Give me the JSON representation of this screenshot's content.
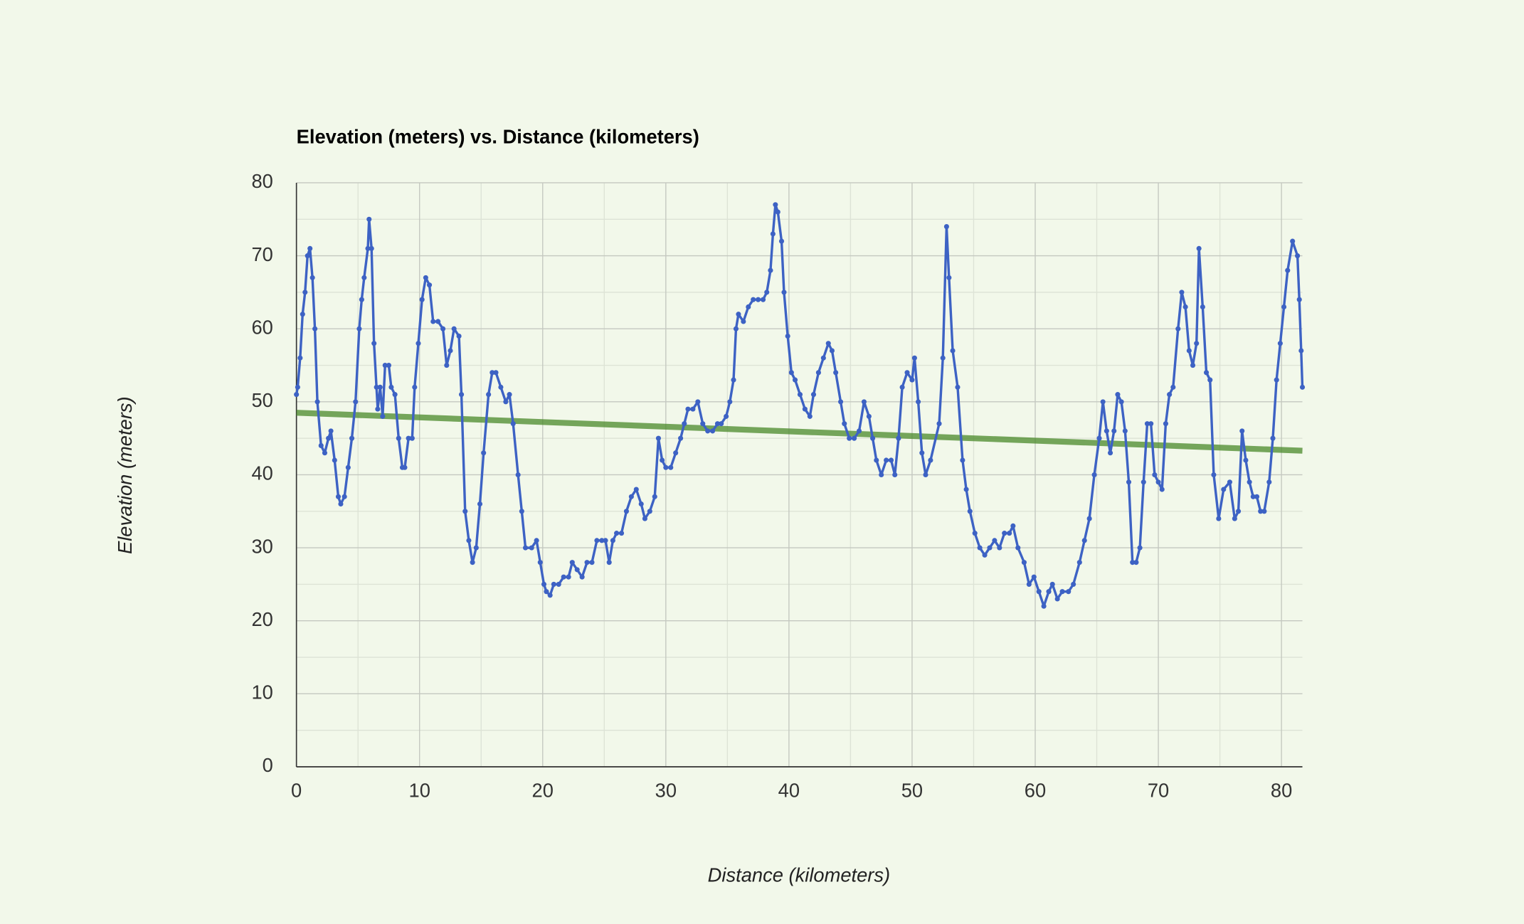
{
  "chart_data": {
    "type": "line",
    "title": "Elevation (meters) vs. Distance (kilometers)",
    "xlabel": "Distance (kilometers)",
    "ylabel": "Elevation (meters)",
    "xlim": [
      0,
      81.7
    ],
    "ylim": [
      0,
      80
    ],
    "xticks": [
      0,
      10,
      20,
      30,
      40,
      50,
      60,
      70,
      80
    ],
    "yticks": [
      0,
      10,
      20,
      30,
      40,
      50,
      60,
      70,
      80
    ],
    "xminorticks": [
      5,
      15,
      25,
      35,
      45,
      55,
      65,
      75
    ],
    "yminorticks": [
      5,
      15,
      25,
      35,
      45,
      55,
      65,
      75
    ],
    "grid": true,
    "series": [
      {
        "color": "#3d62c4",
        "markers": true,
        "x": [
          0,
          0.1,
          0.3,
          0.5,
          0.7,
          0.9,
          1.1,
          1.3,
          1.5,
          1.7,
          2,
          2.3,
          2.6,
          2.8,
          3.1,
          3.4,
          3.6,
          3.9,
          4.2,
          4.5,
          4.8,
          5.1,
          5.3,
          5.5,
          5.8,
          5.9,
          6.1,
          6.3,
          6.5,
          6.6,
          6.8,
          7,
          7.2,
          7.5,
          7.7,
          8,
          8.3,
          8.6,
          8.8,
          9.1,
          9.4,
          9.6,
          9.9,
          10.2,
          10.5,
          10.8,
          11.1,
          11.5,
          11.9,
          12.2,
          12.5,
          12.8,
          13.2,
          13.4,
          13.7,
          14,
          14.3,
          14.6,
          14.9,
          15.2,
          15.6,
          15.9,
          16.2,
          16.6,
          17,
          17.3,
          17.6,
          18,
          18.3,
          18.6,
          19.1,
          19.5,
          19.8,
          20.1,
          20.3,
          20.6,
          20.9,
          21.3,
          21.7,
          22.1,
          22.4,
          22.8,
          23.2,
          23.6,
          24,
          24.4,
          24.8,
          25.1,
          25.4,
          25.7,
          26,
          26.4,
          26.8,
          27.2,
          27.6,
          28,
          28.3,
          28.7,
          29.1,
          29.4,
          29.7,
          30,
          30.4,
          30.8,
          31.2,
          31.5,
          31.8,
          32.2,
          32.6,
          33,
          33.4,
          33.8,
          34.2,
          34.5,
          34.9,
          35.2,
          35.5,
          35.7,
          35.9,
          36.3,
          36.7,
          37.1,
          37.5,
          37.9,
          38.2,
          38.5,
          38.7,
          38.9,
          39.1,
          39.4,
          39.6,
          39.9,
          40.2,
          40.5,
          40.9,
          41.3,
          41.7,
          42,
          42.4,
          42.8,
          43.2,
          43.5,
          43.8,
          44.2,
          44.5,
          44.9,
          45.3,
          45.7,
          46.1,
          46.5,
          46.8,
          47.1,
          47.5,
          47.9,
          48.3,
          48.6,
          48.9,
          49.2,
          49.6,
          50,
          50.2,
          50.5,
          50.8,
          51.1,
          51.5,
          52.2,
          52.5,
          52.8,
          53,
          53.3,
          53.7,
          54.1,
          54.4,
          54.7,
          55.1,
          55.5,
          55.9,
          56.3,
          56.7,
          57.1,
          57.5,
          57.9,
          58.2,
          58.6,
          59.1,
          59.5,
          59.9,
          60.3,
          60.7,
          61.1,
          61.4,
          61.8,
          62.2,
          62.7,
          63.1,
          63.6,
          64,
          64.4,
          64.8,
          65.2,
          65.5,
          65.8,
          66.1,
          66.4,
          66.7,
          67,
          67.3,
          67.6,
          67.9,
          68.2,
          68.5,
          68.8,
          69.1,
          69.4,
          69.7,
          70,
          70.3,
          70.6,
          70.9,
          71.2,
          71.6,
          71.9,
          72.2,
          72.5,
          72.8,
          73.1,
          73.3,
          73.6,
          73.9,
          74.2,
          74.5,
          74.9,
          75.3,
          75.8,
          76.2,
          76.5,
          76.8,
          77.1,
          77.4,
          77.7,
          78,
          78.3,
          78.6,
          79,
          79.3,
          79.6,
          79.9,
          80.2,
          80.5,
          80.9,
          81.3,
          81.45,
          81.6,
          81.7
        ],
        "values": [
          51,
          52,
          56,
          62,
          65,
          70,
          71,
          67,
          60,
          50,
          44,
          43,
          45,
          46,
          42,
          37,
          36,
          37,
          41,
          45,
          50,
          60,
          64,
          67,
          71,
          75,
          71,
          58,
          52,
          49,
          52,
          48,
          55,
          55,
          52,
          51,
          45,
          41,
          41,
          45,
          45,
          52,
          58,
          64,
          67,
          66,
          61,
          61,
          60,
          55,
          57,
          60,
          59,
          51,
          35,
          31,
          28,
          30,
          36,
          43,
          51,
          54,
          54,
          52,
          50,
          51,
          47,
          40,
          35,
          30,
          30,
          31,
          28,
          25,
          24,
          23.5,
          25,
          25,
          26,
          26,
          28,
          27,
          26,
          28,
          28,
          31,
          31,
          31,
          28,
          31,
          32,
          32,
          35,
          37,
          38,
          36,
          34,
          35,
          37,
          45,
          42,
          41,
          41,
          43,
          45,
          47,
          49,
          49,
          50,
          47,
          46,
          46,
          47,
          47,
          48,
          50,
          53,
          60,
          62,
          61,
          63,
          64,
          64,
          64,
          65,
          68,
          73,
          77,
          76,
          72,
          65,
          59,
          54,
          53,
          51,
          49,
          48,
          51,
          54,
          56,
          58,
          57,
          54,
          50,
          47,
          45,
          45,
          46,
          50,
          48,
          45,
          42,
          40,
          42,
          42,
          40,
          45,
          52,
          54,
          53,
          56,
          50,
          43,
          40,
          42,
          47,
          56,
          74,
          67,
          57,
          52,
          42,
          38,
          35,
          32,
          30,
          29,
          30,
          31,
          30,
          32,
          32,
          33,
          30,
          28,
          25,
          26,
          24,
          22,
          24,
          25,
          23,
          24,
          24,
          25,
          28,
          31,
          34,
          40,
          45,
          50,
          46,
          43,
          46,
          51,
          50,
          46,
          39,
          28,
          28,
          30,
          39,
          47,
          47,
          40,
          39,
          38,
          47,
          51,
          52,
          60,
          65,
          63,
          57,
          55,
          58,
          71,
          63,
          54,
          53,
          40,
          34,
          38,
          39,
          34,
          35,
          46,
          42,
          39,
          37,
          37,
          35,
          35,
          39,
          45,
          53,
          58,
          63,
          68,
          72,
          70,
          64,
          57,
          52
        ]
      },
      {
        "color": "#4a8a2a",
        "markers": false,
        "x": [
          0,
          81.7
        ],
        "values": [
          48.5,
          43.3
        ]
      }
    ]
  }
}
